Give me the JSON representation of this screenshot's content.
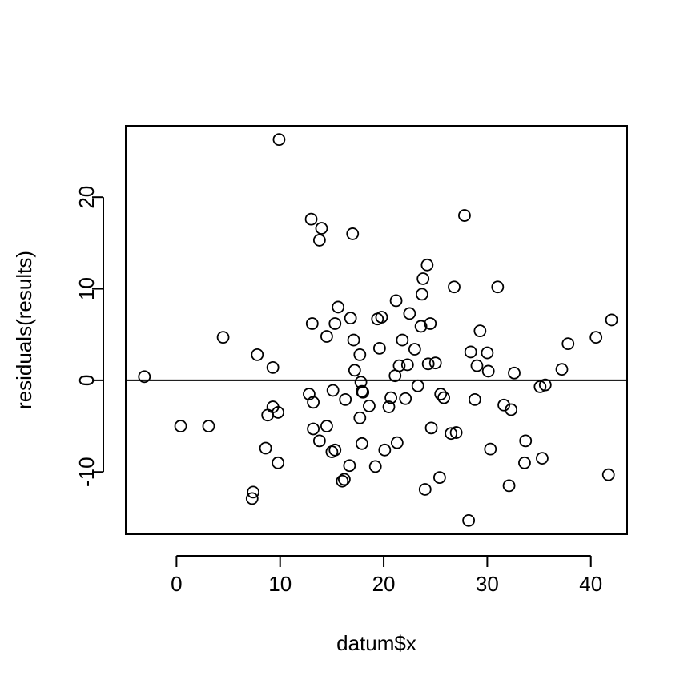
{
  "chart_data": {
    "type": "scatter",
    "title": "",
    "xlabel": "datum$x",
    "ylabel": "residuals(results)",
    "xlim": [
      -4.9,
      43.5
    ],
    "ylim": [
      -16.8,
      27.8
    ],
    "xticks": [
      0,
      10,
      20,
      30,
      40
    ],
    "yticks": [
      -10,
      0,
      10,
      20
    ],
    "xtick_labels": [
      "0",
      "10",
      "20",
      "30",
      "40"
    ],
    "ytick_labels": [
      "-10",
      "0",
      "10",
      "20"
    ],
    "reference_line_y": 0,
    "grid": false,
    "marker": "open-circle",
    "colors": {
      "ink": "#000000",
      "background": "#ffffff"
    },
    "series": [
      {
        "points": [
          [
            -3.1,
            0.4
          ],
          [
            0.4,
            -5.0
          ],
          [
            3.1,
            -5.0
          ],
          [
            4.5,
            4.7
          ],
          [
            7.4,
            -12.2
          ],
          [
            7.3,
            -12.9
          ],
          [
            7.8,
            2.8
          ],
          [
            8.6,
            -7.4
          ],
          [
            8.8,
            -3.8
          ],
          [
            9.3,
            1.4
          ],
          [
            9.3,
            -2.9
          ],
          [
            9.8,
            -3.5
          ],
          [
            9.8,
            -9.0
          ],
          [
            9.9,
            26.3
          ],
          [
            12.8,
            -1.5
          ],
          [
            13.0,
            17.6
          ],
          [
            13.1,
            6.2
          ],
          [
            13.2,
            -2.4
          ],
          [
            13.2,
            -5.3
          ],
          [
            13.8,
            15.3
          ],
          [
            13.8,
            -6.6
          ],
          [
            14.0,
            16.6
          ],
          [
            14.5,
            4.8
          ],
          [
            14.5,
            -5.0
          ],
          [
            15.0,
            -7.8
          ],
          [
            15.1,
            -1.1
          ],
          [
            15.3,
            -7.6
          ],
          [
            15.3,
            6.2
          ],
          [
            15.6,
            8.0
          ],
          [
            16.0,
            -11.0
          ],
          [
            16.2,
            -10.8
          ],
          [
            16.3,
            -2.1
          ],
          [
            16.7,
            -9.3
          ],
          [
            16.8,
            6.8
          ],
          [
            17.0,
            16.0
          ],
          [
            17.1,
            4.4
          ],
          [
            17.2,
            1.1
          ],
          [
            17.7,
            -4.1
          ],
          [
            17.7,
            2.8
          ],
          [
            17.8,
            -0.2
          ],
          [
            17.9,
            -6.9
          ],
          [
            17.9,
            -1.2
          ],
          [
            18.0,
            -1.3
          ],
          [
            18.6,
            -2.8
          ],
          [
            19.2,
            -9.4
          ],
          [
            19.4,
            6.7
          ],
          [
            19.6,
            3.5
          ],
          [
            19.8,
            6.9
          ],
          [
            20.1,
            -7.6
          ],
          [
            20.5,
            -2.9
          ],
          [
            20.7,
            -1.9
          ],
          [
            21.1,
            0.5
          ],
          [
            21.2,
            8.7
          ],
          [
            21.3,
            -6.8
          ],
          [
            21.5,
            1.6
          ],
          [
            21.8,
            4.4
          ],
          [
            22.1,
            -2.0
          ],
          [
            22.3,
            1.7
          ],
          [
            22.5,
            7.3
          ],
          [
            23.0,
            3.4
          ],
          [
            23.3,
            -0.6
          ],
          [
            23.6,
            5.9
          ],
          [
            23.7,
            9.4
          ],
          [
            23.8,
            11.1
          ],
          [
            24.0,
            -11.9
          ],
          [
            24.2,
            12.6
          ],
          [
            24.3,
            1.8
          ],
          [
            24.5,
            6.2
          ],
          [
            24.6,
            -5.2
          ],
          [
            25.0,
            1.9
          ],
          [
            25.4,
            -10.6
          ],
          [
            25.5,
            -1.5
          ],
          [
            25.8,
            -1.9
          ],
          [
            26.5,
            -5.8
          ],
          [
            26.8,
            10.2
          ],
          [
            27.0,
            -5.7
          ],
          [
            27.8,
            18.0
          ],
          [
            28.2,
            -15.3
          ],
          [
            28.4,
            3.1
          ],
          [
            28.8,
            -2.1
          ],
          [
            29.0,
            1.6
          ],
          [
            29.3,
            5.4
          ],
          [
            30.0,
            3.0
          ],
          [
            30.1,
            1.0
          ],
          [
            30.3,
            -7.5
          ],
          [
            31.0,
            10.2
          ],
          [
            31.6,
            -2.7
          ],
          [
            32.1,
            -11.5
          ],
          [
            32.3,
            -3.2
          ],
          [
            32.6,
            0.8
          ],
          [
            33.6,
            -9.0
          ],
          [
            33.7,
            -6.6
          ],
          [
            35.1,
            -0.7
          ],
          [
            35.3,
            -8.5
          ],
          [
            35.6,
            -0.5
          ],
          [
            37.2,
            1.2
          ],
          [
            37.8,
            4.0
          ],
          [
            40.5,
            4.7
          ],
          [
            41.7,
            -10.3
          ],
          [
            42.0,
            6.6
          ]
        ]
      }
    ]
  }
}
